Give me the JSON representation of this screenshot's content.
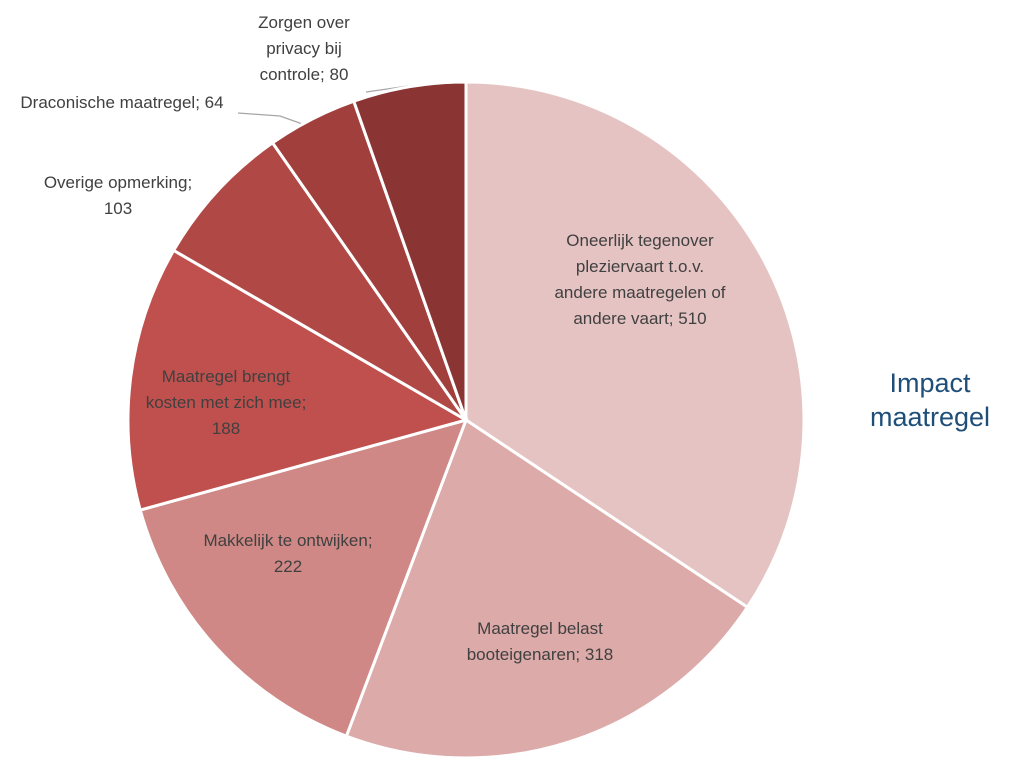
{
  "chart_data": {
    "type": "pie",
    "title": "Impact maatregel",
    "categories": [
      "Oneerlijk tegenover pleziervaart t.o.v. andere maatregelen of andere vaart;",
      "Maatregel belast booteigenaren;",
      "Makkelijk te ontwijken;",
      "Maatregel brengt kosten met zich mee;",
      "Overige opmerking;",
      "Draconische maatregel;",
      "Zorgen over privacy bij controle;"
    ],
    "values": [
      510,
      318,
      222,
      188,
      103,
      64,
      80
    ],
    "colors": [
      "#e6c3c3",
      "#dcaaa9",
      "#cf8885",
      "#c0504d",
      "#b04845",
      "#a13f3c",
      "#8a3533"
    ]
  }
}
